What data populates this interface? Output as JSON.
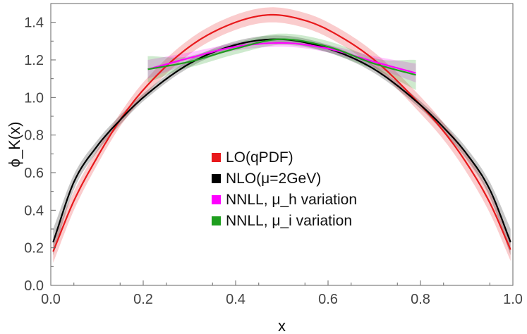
{
  "chart_data": {
    "type": "line",
    "xlabel": "x",
    "ylabel": "ϕ_K(x)",
    "xlim": [
      0.0,
      1.0
    ],
    "ylim": [
      0.0,
      1.5
    ],
    "x_ticks": [
      0.0,
      0.2,
      0.4,
      0.6,
      0.8,
      1.0
    ],
    "x_tick_labels": [
      "0.0",
      "0.2",
      "0.4",
      "0.6",
      "0.8",
      "1.0"
    ],
    "y_ticks": [
      0.0,
      0.2,
      0.4,
      0.6,
      0.8,
      1.0,
      1.2,
      1.4
    ],
    "y_tick_labels": [
      "0.0",
      "0.2",
      "0.4",
      "0.6",
      "0.8",
      "1.0",
      "1.2",
      "1.4"
    ],
    "grid": false,
    "legend_position": "center",
    "legend": [
      {
        "text": "LO(qPDF)",
        "color": "#e8191c"
      },
      {
        "text": "NLO(μ=2GeV)",
        "color": "#000000"
      },
      {
        "text": "NNLL, μ_h variation",
        "color": "#ff00ff"
      },
      {
        "text": "NNLL, μ_i variation",
        "color": "#1e9e1e"
      }
    ],
    "series": [
      {
        "name": "LO(qPDF)",
        "color": "#e8191c",
        "x": [
          0.005,
          0.05,
          0.1,
          0.15,
          0.2,
          0.3,
          0.4,
          0.48,
          0.55,
          0.6,
          0.7,
          0.8,
          0.85,
          0.9,
          0.95,
          0.995
        ],
        "y": [
          0.18,
          0.45,
          0.68,
          0.88,
          1.04,
          1.27,
          1.4,
          1.44,
          1.41,
          1.36,
          1.2,
          0.96,
          0.82,
          0.65,
          0.44,
          0.19
        ],
        "band": [
          0.06,
          0.05,
          0.04,
          0.035,
          0.04,
          0.04,
          0.04,
          0.04,
          0.04,
          0.04,
          0.04,
          0.045,
          0.045,
          0.05,
          0.055,
          0.06
        ]
      },
      {
        "name": "NLO(μ=2GeV)",
        "color": "#000000",
        "x": [
          0.005,
          0.05,
          0.1,
          0.15,
          0.2,
          0.3,
          0.4,
          0.49,
          0.6,
          0.7,
          0.8,
          0.85,
          0.9,
          0.95,
          0.995
        ],
        "y": [
          0.23,
          0.55,
          0.74,
          0.88,
          1.0,
          1.18,
          1.28,
          1.31,
          1.26,
          1.15,
          0.96,
          0.84,
          0.7,
          0.51,
          0.23
        ],
        "band": [
          0.07,
          0.04,
          0.03,
          0.025,
          0.02,
          0.02,
          0.02,
          0.02,
          0.02,
          0.02,
          0.02,
          0.025,
          0.03,
          0.04,
          0.07
        ]
      },
      {
        "name": "NNLL, μ_h variation",
        "color": "#ff00ff",
        "x": [
          0.21,
          0.3,
          0.4,
          0.5,
          0.6,
          0.7,
          0.79
        ],
        "y": [
          1.15,
          1.21,
          1.27,
          1.29,
          1.26,
          1.19,
          1.13
        ],
        "band": [
          0.05,
          0.03,
          0.02,
          0.02,
          0.02,
          0.03,
          0.05
        ]
      },
      {
        "name": "NNLL, μ_i variation",
        "color": "#1e9e1e",
        "x": [
          0.21,
          0.3,
          0.4,
          0.5,
          0.6,
          0.7,
          0.79
        ],
        "y": [
          1.15,
          1.19,
          1.26,
          1.31,
          1.27,
          1.18,
          1.12
        ],
        "band": [
          0.07,
          0.03,
          0.03,
          0.03,
          0.03,
          0.03,
          0.08
        ]
      }
    ]
  }
}
